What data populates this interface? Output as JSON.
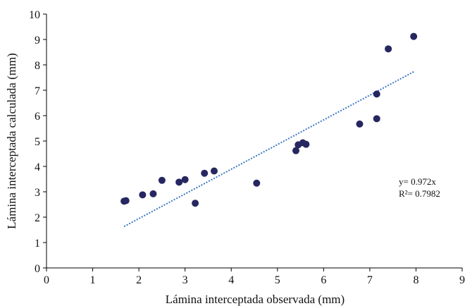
{
  "chart_data": {
    "type": "scatter",
    "xlabel": "Lámina interceptada observada (mm)",
    "ylabel": "Lámina interceptada calculada (mm)",
    "xlim": [
      0,
      9
    ],
    "ylim": [
      0,
      10
    ],
    "xticks": [
      0,
      1,
      2,
      3,
      4,
      5,
      6,
      7,
      8,
      9
    ],
    "yticks": [
      0,
      1,
      2,
      3,
      4,
      5,
      6,
      7,
      8,
      9,
      10
    ],
    "grid": false,
    "legend": "none",
    "point_color": "#262661",
    "trendline_color": "#3a78c2",
    "points": [
      {
        "x": 1.68,
        "y": 2.63
      },
      {
        "x": 1.72,
        "y": 2.65
      },
      {
        "x": 2.08,
        "y": 2.88
      },
      {
        "x": 2.31,
        "y": 2.92
      },
      {
        "x": 2.5,
        "y": 3.45
      },
      {
        "x": 2.87,
        "y": 3.38
      },
      {
        "x": 3.0,
        "y": 3.48
      },
      {
        "x": 3.22,
        "y": 2.55
      },
      {
        "x": 3.42,
        "y": 3.73
      },
      {
        "x": 3.63,
        "y": 3.82
      },
      {
        "x": 4.55,
        "y": 3.34
      },
      {
        "x": 5.4,
        "y": 4.62
      },
      {
        "x": 5.45,
        "y": 4.85
      },
      {
        "x": 5.55,
        "y": 4.93
      },
      {
        "x": 5.62,
        "y": 4.87
      },
      {
        "x": 6.78,
        "y": 5.67
      },
      {
        "x": 7.15,
        "y": 5.88
      },
      {
        "x": 7.15,
        "y": 6.85
      },
      {
        "x": 7.4,
        "y": 8.63
      },
      {
        "x": 7.95,
        "y": 9.12
      }
    ],
    "trendline": {
      "slope": 0.972,
      "x_range": [
        1.68,
        7.95
      ],
      "equation_label": "y= 0.972x",
      "r2_label": "R²= 0.7982"
    }
  }
}
